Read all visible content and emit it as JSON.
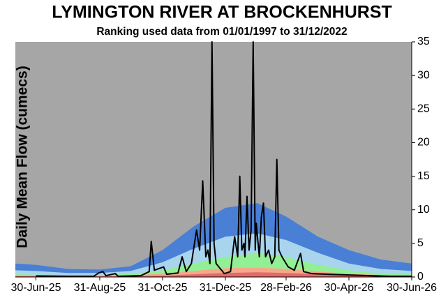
{
  "chart_data": {
    "type": "line",
    "title": "LYMINGTON RIVER AT BROCKENHURST",
    "subtitle": "Ranking used data from 01/01/1997 to 31/12/2022",
    "y_label": "Daily Mean Flow (cumecs)",
    "background": "#a6a6a6",
    "xlim": [
      "2025-06-10",
      "2026-06-30"
    ],
    "xticks": [
      {
        "value": "2025-06-30",
        "label": "30-Jun-25"
      },
      {
        "value": "2025-08-31",
        "label": "31-Aug-25"
      },
      {
        "value": "2025-10-31",
        "label": "31-Oct-25"
      },
      {
        "value": "2025-12-31",
        "label": "31-Dec-25"
      },
      {
        "value": "2026-02-28",
        "label": "28-Feb-26"
      },
      {
        "value": "2026-04-30",
        "label": "30-Apr-26"
      },
      {
        "value": "2026-06-30",
        "label": "30-Jun-26"
      }
    ],
    "ylim": [
      0,
      35
    ],
    "yticks": [
      0,
      5,
      10,
      15,
      20,
      25,
      30,
      35
    ],
    "band_x": [
      "2025-06-10",
      "2025-06-30",
      "2025-07-31",
      "2025-08-31",
      "2025-09-30",
      "2025-10-31",
      "2025-11-30",
      "2025-12-31",
      "2026-01-31",
      "2026-02-28",
      "2026-03-31",
      "2026-04-30",
      "2026-05-31",
      "2026-06-30"
    ],
    "bands": [
      {
        "color": "#4a7fd6",
        "values": [
          2,
          1.8,
          1.2,
          1.1,
          1.6,
          4,
          7.5,
          10.3,
          11,
          9,
          6,
          4,
          2.6,
          2
        ]
      },
      {
        "color": "#a8d4ee",
        "values": [
          1,
          0.9,
          0.6,
          0.6,
          0.9,
          2.2,
          4.2,
          6,
          6.5,
          5.5,
          3.6,
          2,
          1.2,
          0.9
        ]
      },
      {
        "color": "#93ef93",
        "values": [
          0.4,
          0.35,
          0.3,
          0.3,
          0.45,
          1,
          2,
          3,
          3.5,
          3,
          1.8,
          1,
          0.5,
          0.4
        ]
      },
      {
        "color": "#f5a98a",
        "values": [
          0.25,
          0.22,
          0.18,
          0.18,
          0.25,
          0.5,
          0.9,
          1.3,
          1.4,
          1.2,
          0.8,
          0.5,
          0.3,
          0.25
        ]
      },
      {
        "color": "#e46a6a",
        "values": [
          0.12,
          0.1,
          0.08,
          0.08,
          0.1,
          0.2,
          0.4,
          0.6,
          0.7,
          0.6,
          0.4,
          0.25,
          0.15,
          0.12
        ]
      }
    ],
    "flow": {
      "color": "#000000",
      "x": [
        "2025-06-30",
        "2025-07-31",
        "2025-08-25",
        "2025-08-30",
        "2025-09-03",
        "2025-09-06",
        "2025-09-15",
        "2025-09-18",
        "2025-10-10",
        "2025-10-18",
        "2025-10-20",
        "2025-10-23",
        "2025-11-01",
        "2025-11-04",
        "2025-11-15",
        "2025-11-19",
        "2025-11-23",
        "2025-11-28",
        "2025-12-03",
        "2025-12-06",
        "2025-12-09",
        "2025-12-12",
        "2025-12-14",
        "2025-12-16",
        "2025-12-18",
        "2025-12-20",
        "2025-12-22",
        "2025-12-30",
        "2026-01-05",
        "2026-01-09",
        "2026-01-12",
        "2026-01-14",
        "2026-01-16",
        "2026-01-18",
        "2026-01-19",
        "2026-01-21",
        "2026-01-23",
        "2026-01-25",
        "2026-01-27",
        "2026-01-29",
        "2026-01-30",
        "2026-02-02",
        "2026-02-04",
        "2026-02-06",
        "2026-02-08",
        "2026-02-11",
        "2026-02-14",
        "2026-02-17",
        "2026-02-19",
        "2026-02-21",
        "2026-02-24",
        "2026-03-02",
        "2026-03-08",
        "2026-03-14",
        "2026-03-17",
        "2026-03-25",
        "2026-04-10",
        "2026-04-30",
        "2026-05-20",
        "2026-06-09",
        "2026-06-30"
      ],
      "values": [
        0.15,
        0.1,
        0.1,
        0.6,
        0.8,
        0.2,
        0.5,
        0.1,
        0.2,
        0.8,
        5.3,
        1,
        1.5,
        0.4,
        0.6,
        3,
        0.8,
        2,
        7,
        4,
        14.3,
        3,
        4,
        2,
        35,
        5,
        2,
        0.5,
        0.8,
        6,
        3,
        15,
        4,
        5,
        3,
        12,
        4,
        7,
        35,
        4,
        8,
        3,
        9,
        11,
        3,
        4,
        2,
        3,
        17.5,
        4,
        3,
        1.5,
        1,
        3.5,
        0.8,
        0.5,
        0.4,
        0.3,
        0.2,
        0.1,
        0.1
      ]
    }
  }
}
